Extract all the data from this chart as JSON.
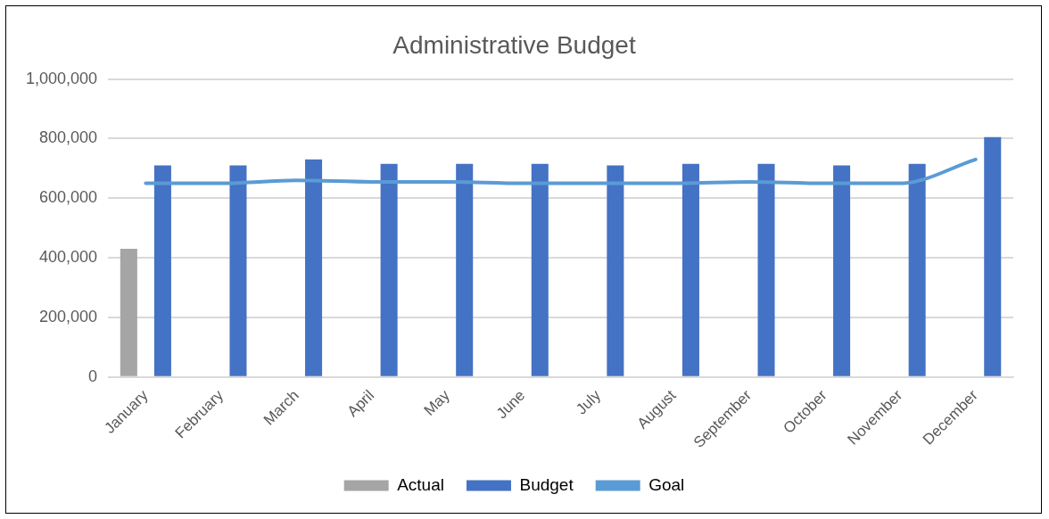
{
  "chart_data": {
    "type": "bar",
    "title": "Administrative Budget",
    "categories": [
      "January",
      "February",
      "March",
      "April",
      "May",
      "June",
      "July",
      "August",
      "September",
      "October",
      "November",
      "December"
    ],
    "series": [
      {
        "name": "Actual",
        "color": "#a5a5a5",
        "values": [
          430000,
          null,
          null,
          null,
          null,
          null,
          null,
          null,
          null,
          null,
          null,
          null
        ]
      },
      {
        "name": "Budget",
        "color": "#4472c4",
        "values": [
          710000,
          710000,
          730000,
          715000,
          715000,
          715000,
          710000,
          715000,
          715000,
          710000,
          715000,
          805000
        ]
      },
      {
        "name": "Goal",
        "type": "line",
        "color": "#5b9bd5",
        "values": [
          650000,
          650000,
          660000,
          655000,
          655000,
          650000,
          650000,
          650000,
          655000,
          650000,
          650000,
          730000
        ]
      }
    ],
    "ylim": [
      0,
      1000000
    ],
    "yticks": [
      {
        "value": 0,
        "label": "0"
      },
      {
        "value": 200000,
        "label": "200,000"
      },
      {
        "value": 400000,
        "label": "400,000"
      },
      {
        "value": 600000,
        "label": "600,000"
      },
      {
        "value": 800000,
        "label": "800,000"
      },
      {
        "value": 1000000,
        "label": "1,000,000"
      }
    ],
    "grid": "y",
    "legend": "bottom",
    "marker": "none"
  }
}
